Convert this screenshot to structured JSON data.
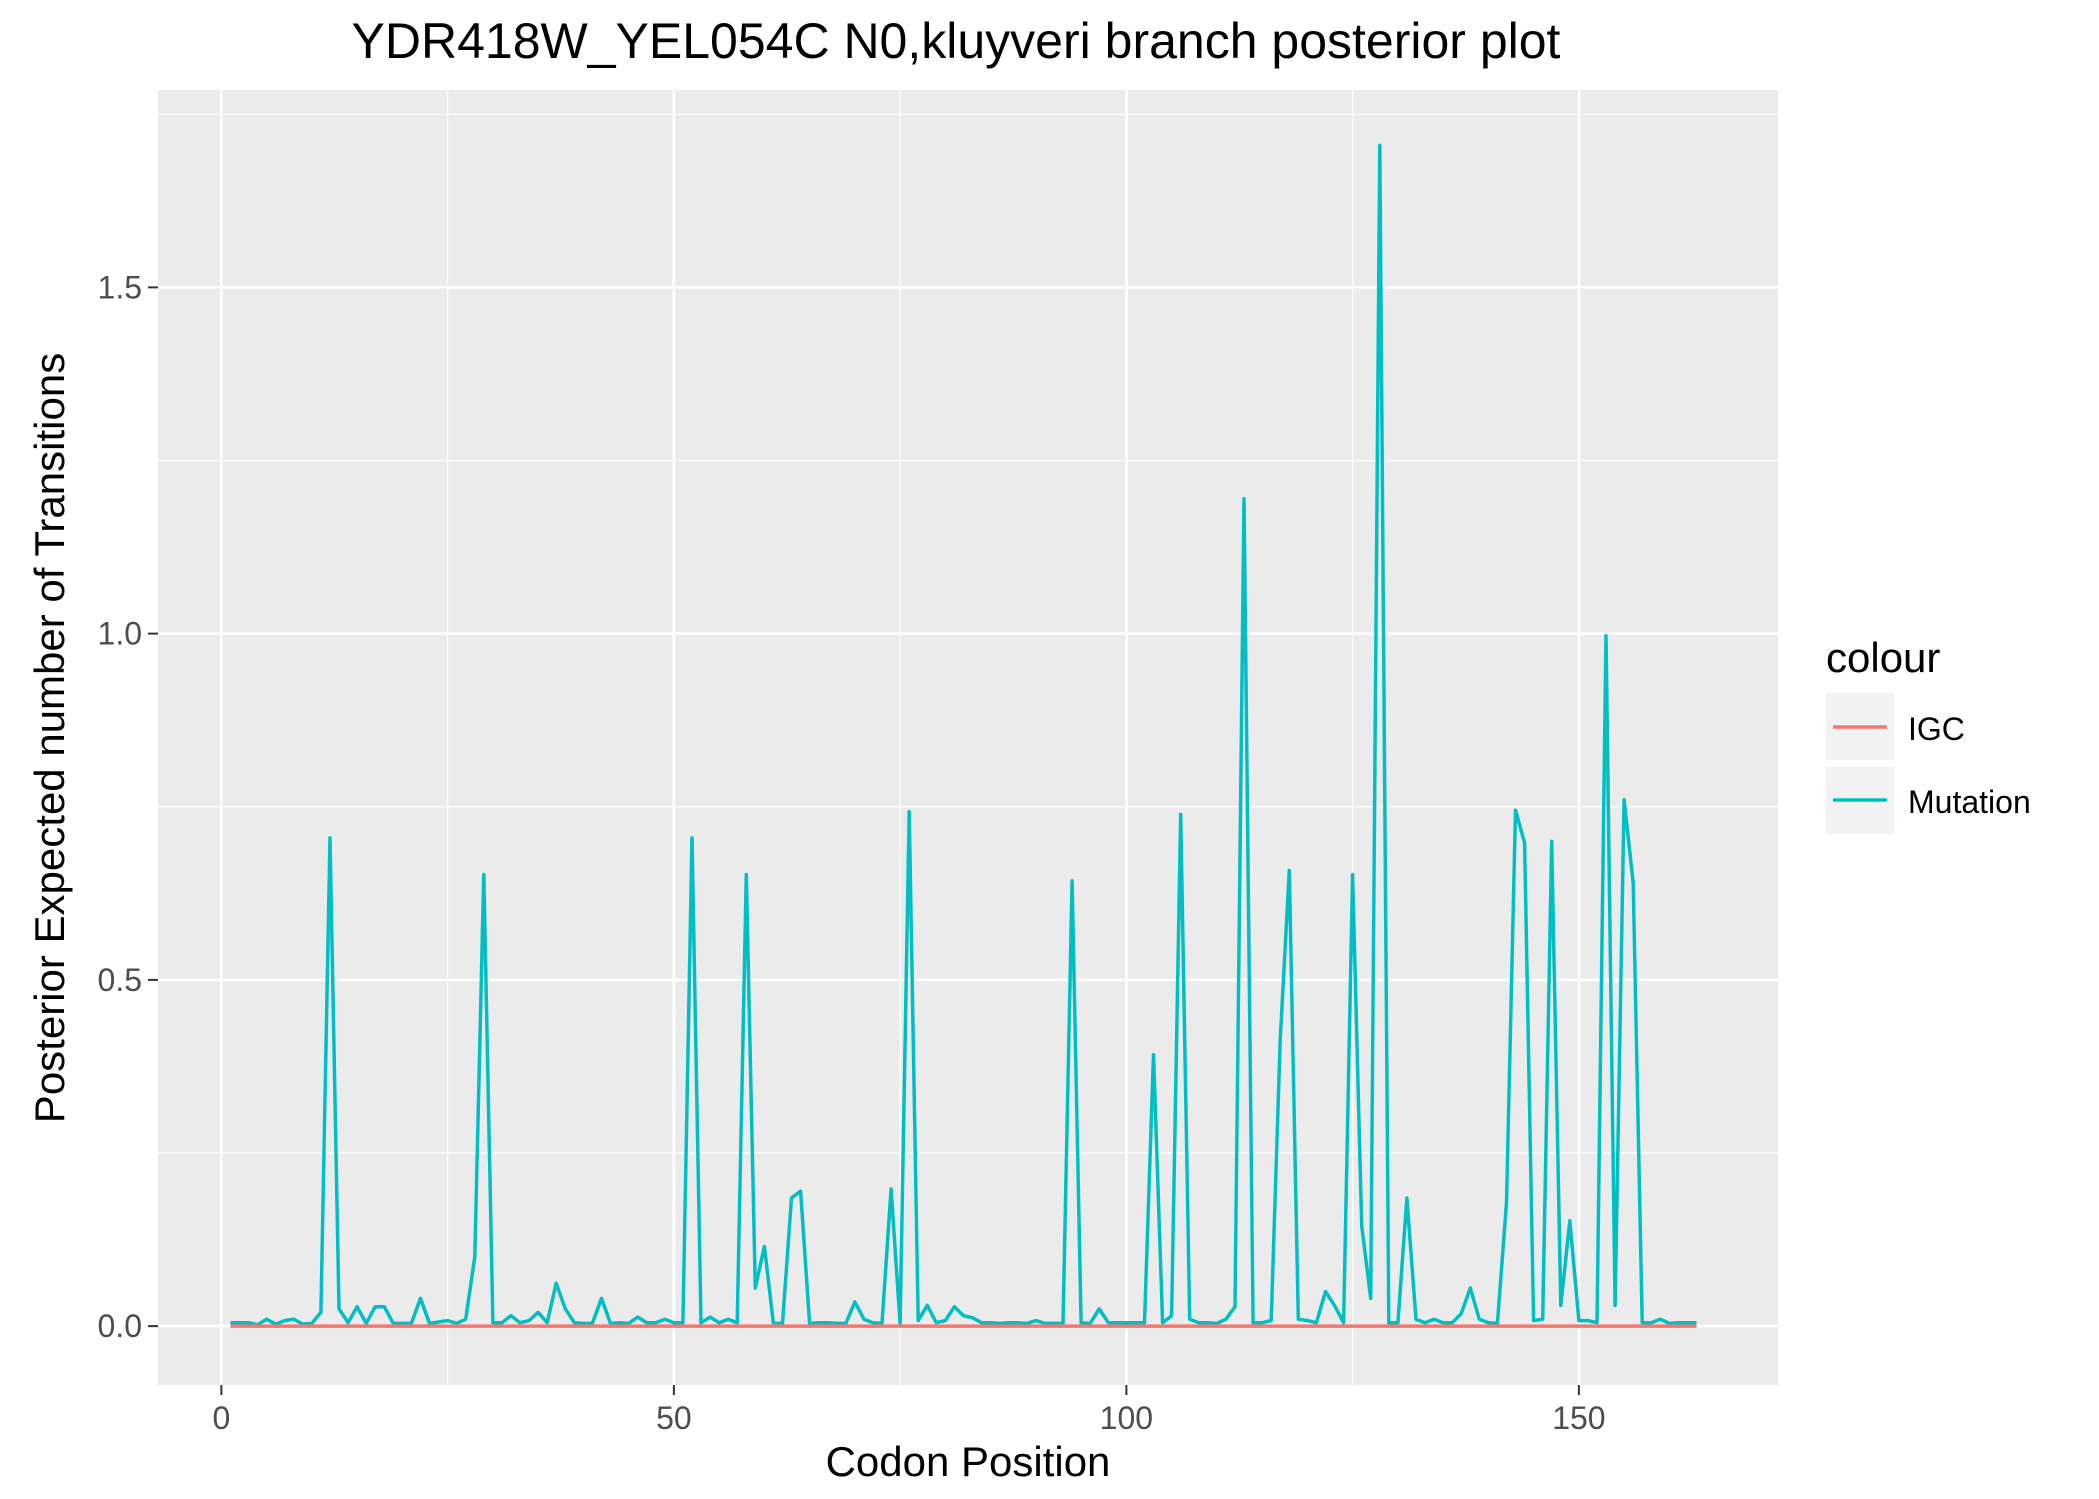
{
  "chart_data": {
    "type": "line",
    "title": "YDR418W_YEL054C N0,kluyveri branch posterior plot",
    "xlabel": "Codon Position",
    "ylabel": "Posterior Expected number of Transitions",
    "xlim": [
      -7,
      172
    ],
    "ylim": [
      -0.085,
      1.785
    ],
    "xticks": [
      0,
      50,
      100,
      150
    ],
    "xtick_labels": [
      "0",
      "50",
      "100",
      "150"
    ],
    "yticks": [
      0.0,
      0.5,
      1.0,
      1.5
    ],
    "ytick_labels": [
      "0.0",
      "0.5",
      "1.0",
      "1.5"
    ],
    "grid": true,
    "legend": {
      "title": "colour",
      "position": "right"
    },
    "x": [
      1,
      2,
      3,
      4,
      5,
      6,
      7,
      8,
      9,
      10,
      11,
      12,
      13,
      14,
      15,
      16,
      17,
      18,
      19,
      20,
      21,
      22,
      23,
      24,
      25,
      26,
      27,
      28,
      29,
      30,
      31,
      32,
      33,
      34,
      35,
      36,
      37,
      38,
      39,
      40,
      41,
      42,
      43,
      44,
      45,
      46,
      47,
      48,
      49,
      50,
      51,
      52,
      53,
      54,
      55,
      56,
      57,
      58,
      59,
      60,
      61,
      62,
      63,
      64,
      65,
      66,
      67,
      68,
      69,
      70,
      71,
      72,
      73,
      74,
      75,
      76,
      77,
      78,
      79,
      80,
      81,
      82,
      83,
      84,
      85,
      86,
      87,
      88,
      89,
      90,
      91,
      92,
      93,
      94,
      95,
      96,
      97,
      98,
      99,
      100,
      101,
      102,
      103,
      104,
      105,
      106,
      107,
      108,
      109,
      110,
      111,
      112,
      113,
      114,
      115,
      116,
      117,
      118,
      119,
      120,
      121,
      122,
      123,
      124,
      125,
      126,
      127,
      128,
      129,
      130,
      131,
      132,
      133,
      134,
      135,
      136,
      137,
      138,
      139,
      140,
      141,
      142,
      143,
      144,
      145,
      146,
      147,
      148,
      149,
      150,
      151,
      152,
      153,
      154,
      155,
      156,
      157,
      158,
      159,
      160,
      161,
      162,
      163
    ],
    "series": [
      {
        "name": "IGC",
        "color": "#F8766D",
        "values": [
          0,
          0,
          0,
          0,
          0,
          0,
          0,
          0,
          0,
          0,
          0,
          0,
          0,
          0,
          0,
          0,
          0,
          0,
          0,
          0,
          0,
          0,
          0,
          0,
          0,
          0,
          0,
          0,
          0,
          0,
          0,
          0,
          0,
          0,
          0,
          0,
          0,
          0,
          0,
          0,
          0,
          0,
          0,
          0,
          0,
          0,
          0,
          0,
          0,
          0,
          0,
          0,
          0,
          0,
          0,
          0,
          0,
          0,
          0,
          0,
          0,
          0,
          0,
          0,
          0,
          0,
          0,
          0,
          0,
          0,
          0,
          0,
          0,
          0,
          0,
          0,
          0,
          0,
          0,
          0,
          0,
          0,
          0,
          0,
          0,
          0,
          0,
          0,
          0,
          0,
          0,
          0,
          0,
          0,
          0,
          0,
          0,
          0,
          0,
          0,
          0,
          0,
          0,
          0,
          0,
          0,
          0,
          0,
          0,
          0,
          0,
          0,
          0,
          0,
          0,
          0,
          0,
          0,
          0,
          0,
          0,
          0,
          0,
          0,
          0,
          0,
          0,
          0,
          0,
          0,
          0,
          0,
          0,
          0,
          0,
          0,
          0,
          0,
          0,
          0,
          0,
          0,
          0,
          0,
          0,
          0,
          0,
          0,
          0,
          0,
          0,
          0,
          0,
          0,
          0,
          0,
          0,
          0,
          0,
          0,
          0,
          0,
          0
        ]
      },
      {
        "name": "Mutation",
        "color": "#00BFC4",
        "values": [
          0.005,
          0.005,
          0.005,
          0.002,
          0.01,
          0.003,
          0.008,
          0.01,
          0.003,
          0.004,
          0.02,
          0.705,
          0.025,
          0.005,
          0.028,
          0.004,
          0.028,
          0.028,
          0.004,
          0.004,
          0.004,
          0.04,
          0.004,
          0.006,
          0.008,
          0.004,
          0.01,
          0.1,
          0.652,
          0.005,
          0.005,
          0.015,
          0.005,
          0.008,
          0.02,
          0.005,
          0.062,
          0.025,
          0.005,
          0.004,
          0.004,
          0.04,
          0.004,
          0.005,
          0.004,
          0.013,
          0.005,
          0.005,
          0.01,
          0.005,
          0.005,
          0.705,
          0.005,
          0.013,
          0.005,
          0.01,
          0.005,
          0.652,
          0.055,
          0.115,
          0.004,
          0.004,
          0.185,
          0.195,
          0.004,
          0.005,
          0.005,
          0.004,
          0.004,
          0.035,
          0.01,
          0.005,
          0.004,
          0.198,
          0.004,
          0.743,
          0.008,
          0.03,
          0.005,
          0.008,
          0.028,
          0.015,
          0.012,
          0.005,
          0.005,
          0.004,
          0.005,
          0.005,
          0.004,
          0.008,
          0.004,
          0.004,
          0.004,
          0.643,
          0.005,
          0.004,
          0.025,
          0.005,
          0.005,
          0.005,
          0.005,
          0.005,
          0.392,
          0.005,
          0.015,
          0.739,
          0.01,
          0.005,
          0.005,
          0.004,
          0.01,
          0.028,
          1.195,
          0.005,
          0.005,
          0.008,
          0.413,
          0.658,
          0.01,
          0.008,
          0.005,
          0.05,
          0.03,
          0.005,
          0.652,
          0.145,
          0.04,
          1.705,
          0.005,
          0.005,
          0.185,
          0.01,
          0.005,
          0.01,
          0.005,
          0.005,
          0.018,
          0.055,
          0.01,
          0.005,
          0.004,
          0.178,
          0.745,
          0.698,
          0.008,
          0.01,
          0.7,
          0.03,
          0.152,
          0.008,
          0.008,
          0.005,
          0.997,
          0.03,
          0.76,
          0.64,
          0.005,
          0.005,
          0.01,
          0.004,
          0.005,
          0.005,
          0.005
        ]
      }
    ]
  }
}
